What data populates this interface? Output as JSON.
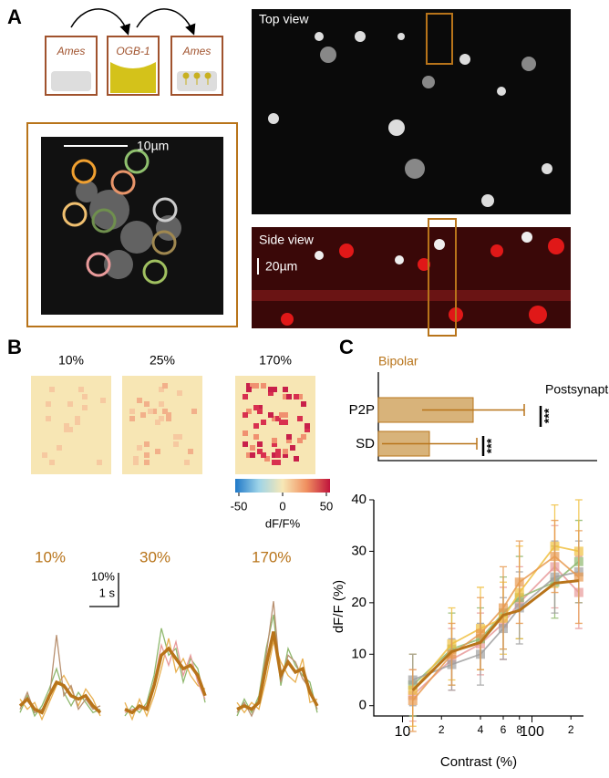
{
  "panel_a": {
    "label": "A",
    "vials": [
      "Ames",
      "OGB-1",
      "Ames"
    ],
    "inset_scale": "10µm",
    "top_view": "Top view",
    "side_view": "Side view",
    "side_scale": "20µm"
  },
  "panel_b": {
    "label": "B",
    "map_titles": [
      "10%",
      "25%",
      "170%"
    ],
    "colorbar": {
      "lim": [
        -50,
        50
      ],
      "ticks": [
        -50,
        0,
        50
      ],
      "label": "dF/F%"
    },
    "trace_titles": [
      "10%",
      "30%",
      "170%"
    ],
    "scale_y": "10%",
    "scale_x": "1 s",
    "mean_color": "#b8741a",
    "traces": [
      {
        "mean": [
          3,
          5,
          2,
          1,
          6,
          10,
          9,
          6,
          5,
          6,
          3,
          1
        ],
        "cells": [
          {
            "color": "#8fb86e",
            "values": [
              1,
              6,
              0,
              3,
              8,
              14,
              7,
              3,
              7,
              4,
              1,
              2
            ]
          },
          {
            "color": "#e8b050",
            "values": [
              5,
              2,
              4,
              -1,
              4,
              9,
              12,
              8,
              3,
              8,
              5,
              0
            ]
          },
          {
            "color": "#b89070",
            "values": [
              2,
              7,
              1,
              2,
              5,
              24,
              6,
              9,
              2,
              5,
              2,
              3
            ]
          }
        ]
      },
      {
        "mean": [
          2,
          1,
          3,
          2,
          9,
          18,
          20,
          17,
          14,
          15,
          12,
          6
        ],
        "cells": [
          {
            "color": "#8fb86e",
            "values": [
              0,
              3,
              1,
              4,
              12,
              26,
              18,
              20,
              10,
              17,
              14,
              4
            ]
          },
          {
            "color": "#e8b050",
            "values": [
              4,
              -1,
              5,
              0,
              6,
              14,
              23,
              13,
              17,
              12,
              9,
              8
            ]
          },
          {
            "color": "#e89a9a",
            "values": [
              1,
              2,
              2,
              3,
              10,
              21,
              15,
              22,
              12,
              18,
              10,
              5
            ]
          }
        ]
      },
      {
        "mean": [
          2,
          3,
          2,
          4,
          15,
          25,
          12,
          16,
          13,
          14,
          7,
          3
        ],
        "cells": [
          {
            "color": "#8fb86e",
            "values": [
              0,
              5,
              1,
              6,
              20,
              30,
              9,
              20,
              15,
              12,
              10,
              1
            ]
          },
          {
            "color": "#e8b050",
            "values": [
              4,
              1,
              4,
              2,
              11,
              22,
              16,
              12,
              10,
              17,
              4,
              5
            ]
          },
          {
            "color": "#b89070",
            "values": [
              1,
              4,
              0,
              5,
              18,
              34,
              10,
              18,
              16,
              11,
              8,
              2
            ]
          }
        ]
      }
    ]
  },
  "panel_c": {
    "label": "C",
    "bar_chart": {
      "type": "bar",
      "title": "Bipolar",
      "categories": [
        "P2P",
        "SD"
      ],
      "values": [
        26,
        14
      ],
      "errors": [
        14,
        13
      ],
      "color": "#d8b37a",
      "edge_color": "#b8741a",
      "xlim": [
        0,
        60
      ],
      "annotations": [
        "Postsynaptic",
        "***",
        "***"
      ]
    },
    "line_chart": {
      "type": "line",
      "x_label": "Contrast (%)",
      "y_label": "dF/F (%)",
      "log_x": true,
      "x": [
        12,
        24,
        40,
        60,
        80,
        150,
        230
      ],
      "xlim": [
        6,
        250
      ],
      "xticks": [
        10,
        {
          "value": 20,
          "label": "2"
        },
        {
          "value": 40,
          "label": "4"
        },
        {
          "value": 60,
          "label": "6"
        },
        {
          "value": 80,
          "label": "8"
        },
        100,
        {
          "value": 200,
          "label": "2"
        }
      ],
      "ylim": [
        -2,
        40
      ],
      "yticks": [
        0,
        10,
        20,
        30,
        40
      ],
      "series": [
        {
          "color": "#e89a9a",
          "values": [
            2,
            9,
            12,
            16,
            20,
            27,
            22
          ],
          "errors": [
            5,
            6,
            6,
            7,
            7,
            8,
            7
          ]
        },
        {
          "color": "#8fb86e",
          "values": [
            4,
            11,
            13,
            18,
            21,
            24,
            28
          ],
          "errors": [
            6,
            7,
            6,
            7,
            8,
            7,
            8
          ]
        },
        {
          "color": "#f0c040",
          "values": [
            3,
            12,
            15,
            17,
            22,
            31,
            30
          ],
          "errors": [
            7,
            7,
            8,
            7,
            9,
            8,
            10
          ]
        },
        {
          "color": "#a0a0a0",
          "values": [
            5,
            8,
            10,
            15,
            19,
            25,
            26
          ],
          "errors": [
            5,
            5,
            6,
            6,
            7,
            7,
            6
          ]
        },
        {
          "color": "#e89a50",
          "values": [
            1,
            10,
            14,
            19,
            24,
            29,
            25
          ],
          "errors": [
            6,
            6,
            7,
            8,
            8,
            7,
            9
          ]
        },
        {
          "color": "#b8741a",
          "values": [
            3,
            10.5,
            12.3,
            17.6,
            18.5,
            23.8,
            24.3
          ],
          "width": 3
        }
      ]
    }
  }
}
